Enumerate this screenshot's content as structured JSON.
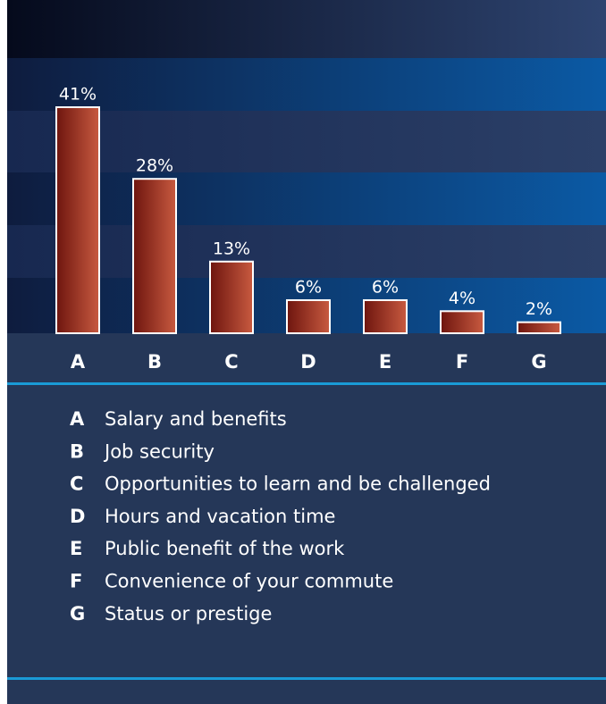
{
  "chart_data": {
    "type": "bar",
    "categories": [
      "A",
      "B",
      "C",
      "D",
      "E",
      "F",
      "G"
    ],
    "values": [
      41,
      28,
      13,
      6,
      6,
      4,
      2
    ],
    "value_labels": [
      "41%",
      "28%",
      "13%",
      "6%",
      "6%",
      "4%",
      "2%"
    ],
    "legend": [
      "Salary and benefits",
      "Job security",
      "Opportunities to learn and be challenged",
      "Hours and vacation time",
      "Public benefit of the work",
      "Convenience of your commute",
      "Status or prestige"
    ],
    "color": "#a83a28"
  }
}
